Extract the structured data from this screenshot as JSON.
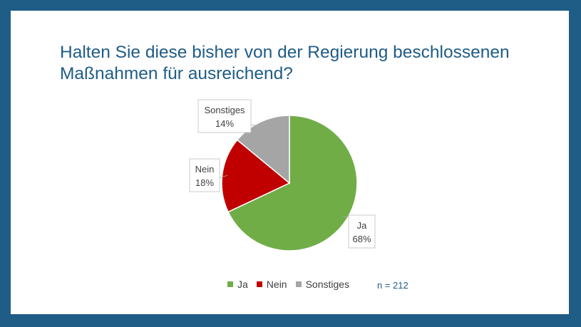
{
  "title": "Halten Sie diese bisher von der Regierung beschlossenen Maßnahmen für ausreichend?",
  "note": "n = 212",
  "chart_data": {
    "type": "pie",
    "title": "Halten Sie diese bisher von der Regierung beschlossenen Maßnahmen für ausreichend?",
    "slices": [
      {
        "label": "Ja",
        "value": 68,
        "display": "68%",
        "color": "#70ad47"
      },
      {
        "label": "Nein",
        "value": 18,
        "display": "18%",
        "color": "#c00000"
      },
      {
        "label": "Sonstiges",
        "value": 14,
        "display": "14%",
        "color": "#a5a5a5"
      }
    ],
    "legend_position": "bottom",
    "annotation": "n = 212"
  }
}
